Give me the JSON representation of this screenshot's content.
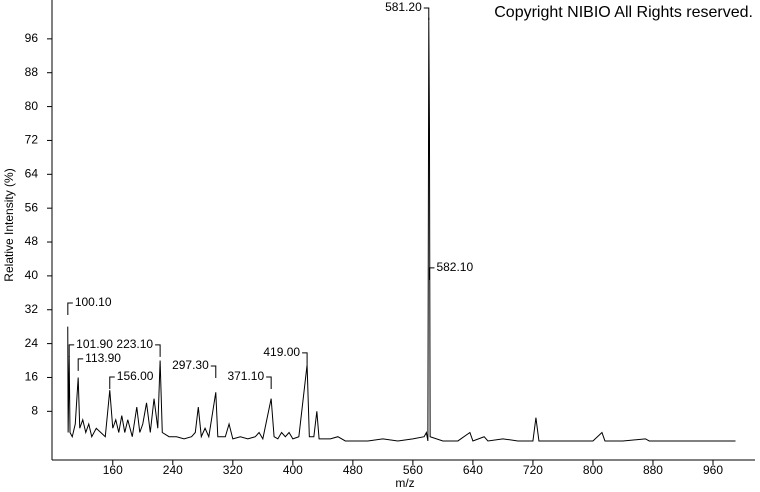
{
  "chart_data": {
    "type": "spectrum",
    "title": "Copyright NIBIO All Rights reserved.",
    "x_label": "m/z",
    "y_label": "Relative Intensity (%)",
    "color": "#000000",
    "xlim": [
      79,
      1016
    ],
    "ylim": [
      -3.5,
      104
    ],
    "xticks": [
      160,
      240,
      320,
      400,
      480,
      560,
      640,
      720,
      800,
      880,
      960
    ],
    "yticks": [
      8,
      16,
      24,
      32,
      40,
      48,
      56,
      64,
      72,
      80,
      88,
      96
    ],
    "x": [
      100,
      100.5,
      101.9,
      103,
      106,
      110,
      113.9,
      116,
      120,
      124,
      128,
      132,
      138,
      144,
      150,
      156,
      160,
      164,
      168,
      172,
      176,
      180,
      186,
      192,
      196,
      200,
      205,
      210,
      215,
      220,
      223.1,
      226,
      235,
      245,
      255,
      265,
      270,
      274,
      278,
      283,
      288,
      297.3,
      300,
      310,
      315,
      320,
      330,
      340,
      350,
      355,
      360,
      371.1,
      375,
      380,
      385,
      390,
      395,
      400,
      408,
      419,
      422,
      428,
      432,
      435,
      450,
      460,
      470,
      500,
      520,
      540,
      560,
      575,
      578,
      580,
      581.2,
      582.1,
      583,
      600,
      620,
      636,
      640,
      655,
      660,
      680,
      700,
      720,
      724,
      728,
      760,
      800,
      812,
      816,
      840,
      870,
      875,
      920,
      960,
      990
    ],
    "values": [
      28,
      3,
      21,
      3,
      2,
      5,
      16,
      4,
      6,
      3,
      5,
      2,
      4,
      3,
      2,
      13,
      4,
      6,
      3,
      7,
      3,
      6,
      2,
      9,
      3,
      5,
      10,
      3,
      11,
      4,
      20,
      3,
      2,
      2,
      1.5,
      2,
      3,
      9,
      2,
      4,
      2,
      12.5,
      2,
      2,
      5,
      1.5,
      2,
      1.5,
      2,
      3,
      1.5,
      11,
      2,
      1.5,
      3,
      2,
      3,
      1.5,
      2,
      19,
      2,
      2,
      8,
      1.5,
      1.5,
      2,
      1,
      1,
      1.5,
      1,
      1.5,
      2,
      3,
      1,
      101,
      75,
      2,
      1,
      1,
      3,
      1,
      2,
      1,
      1.5,
      1,
      1,
      6.5,
      1,
      1,
      1,
      3,
      1,
      1,
      1.5,
      1,
      1,
      1,
      1
    ],
    "annotations": [
      {
        "x": {
          "value": 100.1,
          "label": "100.10"
        },
        "y": 33.6,
        "label_side": "right"
      },
      {
        "x": {
          "value": 101.9,
          "label": "101.90"
        },
        "y": 23.7,
        "label_side": "right"
      },
      {
        "x": {
          "value": 113.9,
          "label": "113.90"
        },
        "y": 20.4,
        "label_side": "right"
      },
      {
        "x": {
          "value": 156,
          "label": "156.00"
        },
        "y": 16.1,
        "label_side": "right"
      },
      {
        "x": {
          "value": 223.1,
          "label": "223.10"
        },
        "y": 23.7,
        "label_side": "left"
      },
      {
        "x": {
          "value": 297.3,
          "label": "297.30"
        },
        "y": 18.7,
        "label_side": "left"
      },
      {
        "x": {
          "value": 371.1,
          "label": "371.10"
        },
        "y": 16.1,
        "label_side": "left"
      },
      {
        "x": {
          "value": 419,
          "label": "419.00"
        },
        "y": 21.8,
        "label_side": "left"
      },
      {
        "x": {
          "value": 581.2,
          "label": "581.20"
        },
        "y": 103.3,
        "label_side": "left"
      },
      {
        "x": {
          "value": 582.1,
          "label": "582.10"
        },
        "y": 41.9,
        "label_side": "right"
      }
    ]
  }
}
